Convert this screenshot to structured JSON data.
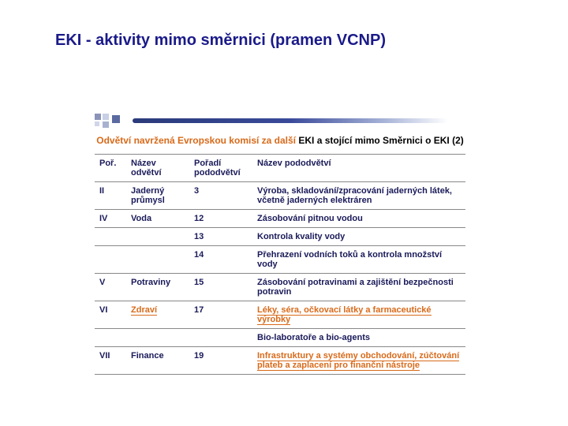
{
  "page_title": "EKI - aktivity mimo směrnici  (pramen VCNP)",
  "table_title": {
    "part1_orange": "Odvětví navržená Evropskou komisí za další ",
    "part2_black": "EKI a stojící mimo Směrnici o EKI (2)"
  },
  "columns": {
    "c1": "Poř.",
    "c2": "Název odvětví",
    "c3": "Pořadí pododvětví",
    "c4": "Název pododvětví"
  },
  "rows": [
    {
      "por": "II",
      "odvetvi": "Jaderný průmysl",
      "items": [
        {
          "poradi": "3",
          "nazev": "Výroba, skladování/zpracování jaderných látek, včetně jaderných elektráren",
          "orange": false
        }
      ]
    },
    {
      "por": "IV",
      "odvetvi": "Voda",
      "items": [
        {
          "poradi": "12",
          "nazev": "Zásobování pitnou vodou",
          "orange": false
        },
        {
          "poradi": "13",
          "nazev": "Kontrola kvality vody",
          "orange": false
        },
        {
          "poradi": "14",
          "nazev": "Přehrazení vodních toků a kontrola množství vody",
          "orange": false
        }
      ]
    },
    {
      "por": "V",
      "odvetvi": "Potraviny",
      "items": [
        {
          "poradi": "15",
          "nazev": "Zásobování potravinami a zajištění bezpečnosti potravin",
          "orange": false
        }
      ]
    },
    {
      "por": "VI",
      "odvetvi": "Zdraví",
      "items": [
        {
          "poradi": "17",
          "nazev": "Léky, séra, očkovací látky a farmaceutické výrobky",
          "orange": true
        },
        {
          "poradi": "",
          "nazev": "Bio-laboratoře a bio-agents",
          "orange": false
        }
      ]
    },
    {
      "por": "VII",
      "odvetvi": "Finance",
      "items": [
        {
          "poradi": "19",
          "nazev": "Infrastruktury a systémy obchodování, zúčtování plateb a zaplacení pro finanční nástroje",
          "orange": true
        }
      ]
    }
  ],
  "colors": {
    "title_blue": "#1a1a8a",
    "orange": "#d86a1a",
    "table_text": "#1a1a5a",
    "border": "#888888"
  }
}
